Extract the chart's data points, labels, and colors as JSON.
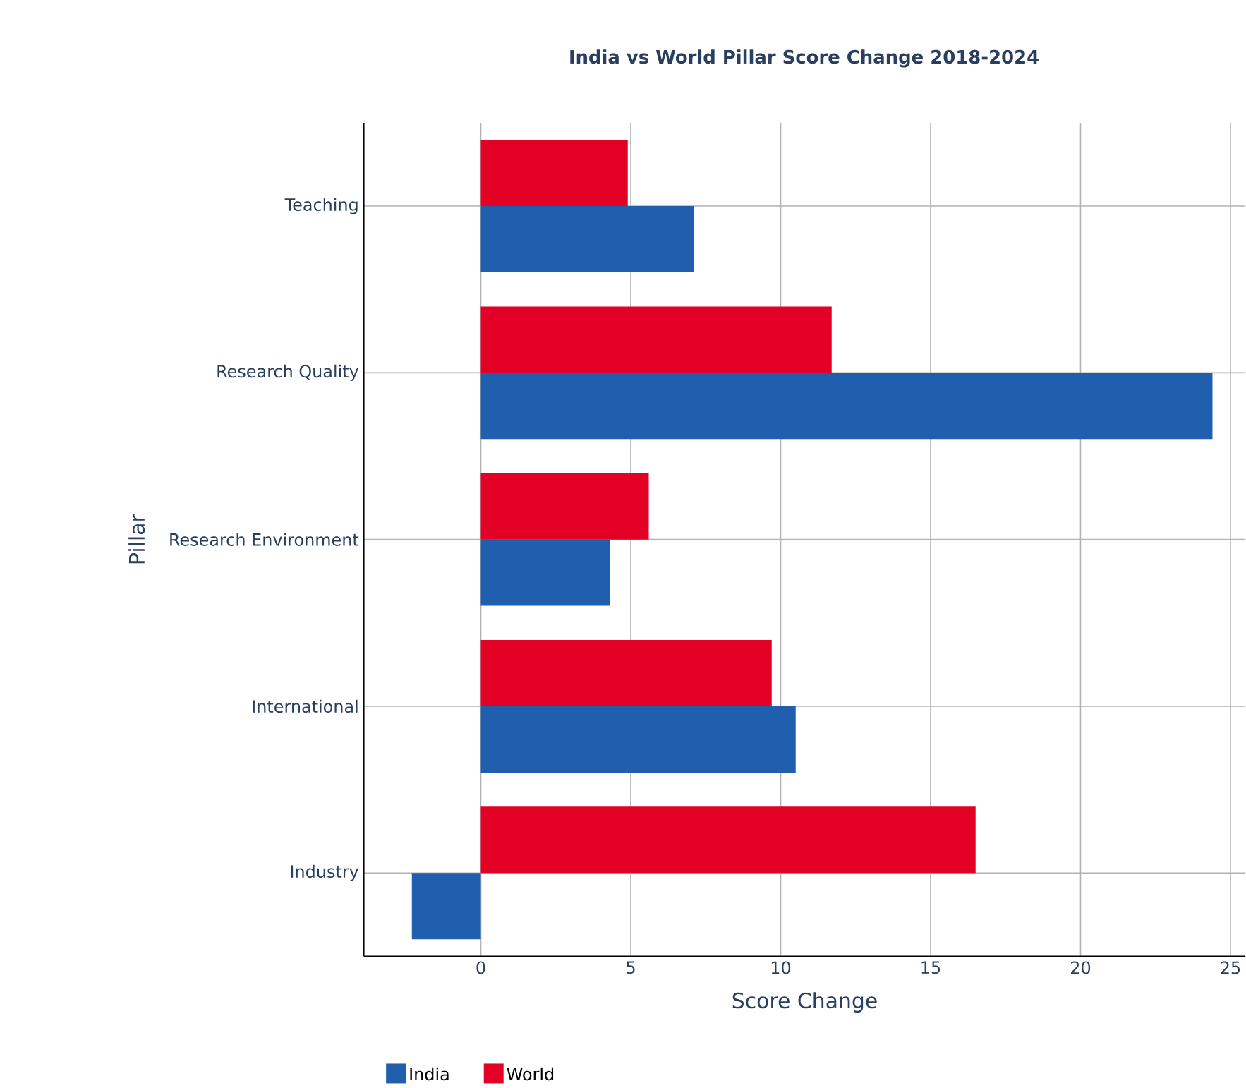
{
  "chart_data": {
    "type": "bar",
    "orientation": "horizontal",
    "title": "India vs World Pillar Score Change 2018-2024",
    "xlabel": "Score Change",
    "ylabel": "Pillar",
    "categories": [
      "Teaching",
      "Research Quality",
      "Research Environment",
      "International",
      "Industry"
    ],
    "series": [
      {
        "name": "India",
        "color": "#1f5fad",
        "values": [
          7.1,
          24.4,
          4.3,
          10.5,
          -2.3
        ]
      },
      {
        "name": "World",
        "color": "#e20025",
        "values": [
          4.9,
          11.7,
          5.6,
          9.7,
          16.5
        ]
      }
    ],
    "xlim": [
      -3.9,
      25.5
    ],
    "xticks": [
      0,
      5,
      10,
      15,
      20,
      25
    ],
    "grid": true,
    "legend": "bottom"
  }
}
